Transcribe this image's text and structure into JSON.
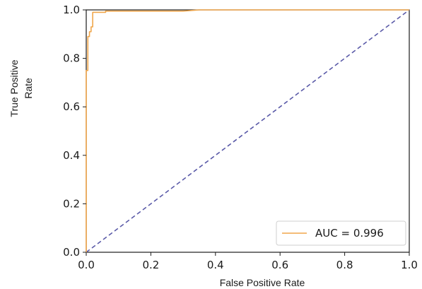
{
  "chart_data": {
    "type": "line",
    "title": "",
    "xlabel": "False Positive Rate",
    "ylabel_lines": [
      "True Positive",
      "Rate"
    ],
    "xlim": [
      0.0,
      1.0
    ],
    "ylim": [
      0.0,
      1.0
    ],
    "xticks": [
      "0.0",
      "0.2",
      "0.4",
      "0.6",
      "0.8",
      "1.0"
    ],
    "yticks": [
      "0.0",
      "0.2",
      "0.4",
      "0.6",
      "0.8",
      "1.0"
    ],
    "grid": false,
    "legend_position": "lower-right",
    "series": [
      {
        "name": "AUC = 0.996",
        "color": "#f0a64a",
        "style": "solid",
        "x": [
          0.0,
          0.0,
          0.005,
          0.005,
          0.01,
          0.01,
          0.015,
          0.015,
          0.02,
          0.02,
          0.03,
          0.03,
          0.06,
          0.06,
          0.3,
          0.35,
          1.0
        ],
        "y": [
          0.0,
          0.75,
          0.75,
          0.89,
          0.89,
          0.91,
          0.91,
          0.93,
          0.93,
          0.99,
          0.99,
          0.99,
          0.99,
          0.995,
          0.995,
          1.0,
          1.0
        ]
      },
      {
        "color": "#5a5aa8",
        "style": "dashed",
        "x": [
          0.0,
          1.0
        ],
        "y": [
          0.0,
          1.0
        ]
      }
    ]
  }
}
